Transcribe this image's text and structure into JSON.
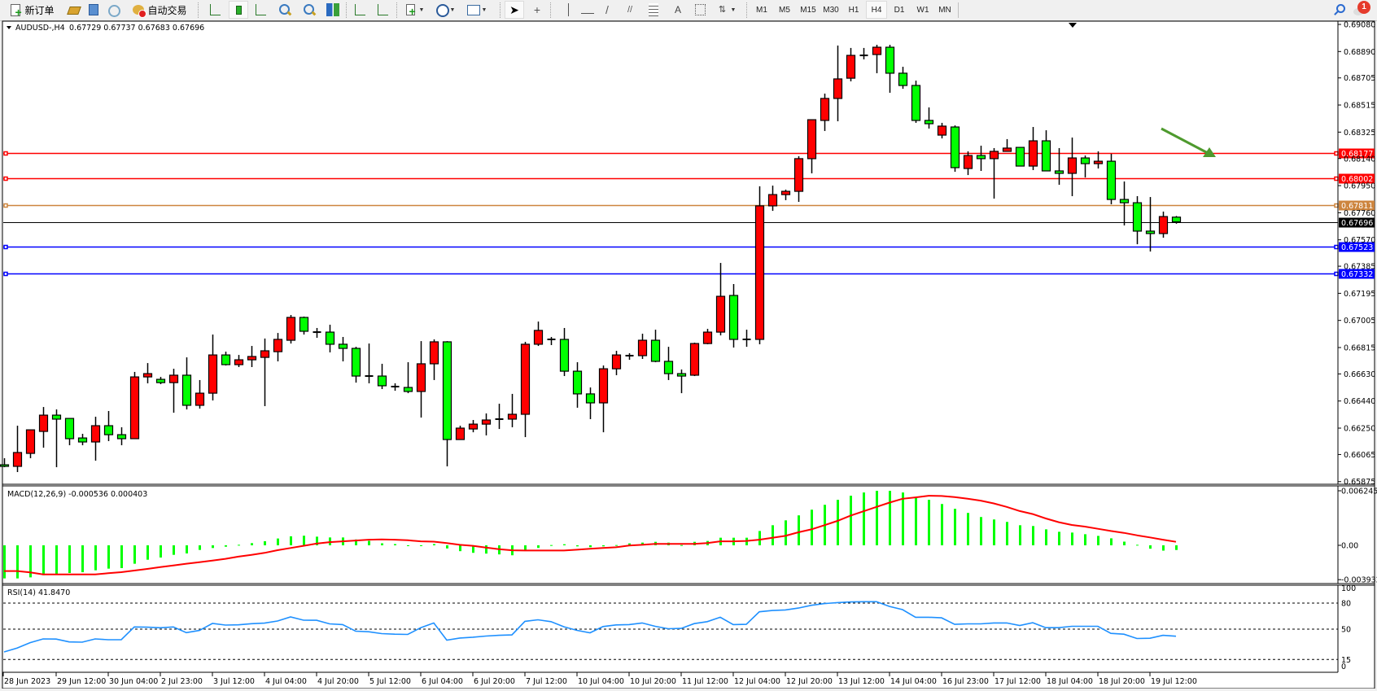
{
  "toolbar": {
    "new_order_label": "新订单",
    "auto_trading_label": "自动交易",
    "icons": [
      "new-order-icon",
      "market-watch-icon",
      "navigator-icon",
      "signals-icon",
      "auto-trading-icon",
      "bar-chart-icon",
      "candlestick-chart-icon",
      "line-chart-icon",
      "zoom-in-icon",
      "zoom-out-icon",
      "tile-windows-icon",
      "auto-scroll-icon",
      "chart-shift-icon",
      "indicators-icon",
      "periods-icon",
      "templates-icon",
      "cursor-icon",
      "crosshair-icon",
      "vertical-line-icon",
      "horizontal-line-icon",
      "trendline-icon",
      "equidistant-channel-icon",
      "fibonacci-icon",
      "text-icon",
      "text-label-icon",
      "arrows-icon",
      "search-icon",
      "notifications-icon"
    ],
    "text_tool": "A",
    "periods": [
      "M1",
      "M5",
      "M15",
      "M30",
      "H1",
      "H4",
      "D1",
      "W1",
      "MN"
    ],
    "active_period": "H4",
    "notification_count": "1"
  },
  "chart": {
    "symbol_label": "AUDUSD-,H4",
    "ohlc_readout": "0.67729 0.67737 0.67683 0.67696",
    "macd_label": "MACD(12,26,9) -0.000536 0.000403",
    "rsi_label": "RSI(14) 41.8470",
    "bull_color": "#ff0000",
    "bear_color": "#00ff00",
    "horizontal_lines": [
      {
        "price": "0.68177",
        "color": "#ff0000"
      },
      {
        "price": "0.68002",
        "color": "#ff0000"
      },
      {
        "price": "0.67811",
        "color": "#cd853f"
      },
      {
        "price": "0.67523",
        "color": "#0000ff"
      },
      {
        "price": "0.67332",
        "color": "#0000ff"
      }
    ],
    "current_price": {
      "price": "0.67696",
      "color": "#000000"
    },
    "annotation_arrow_color": "#4e9a2e"
  },
  "chart_data": [
    {
      "type": "candlestick",
      "series_label": "AUDUSD-,H4",
      "price_ticks": [
        "0.69080",
        "0.68890",
        "0.68705",
        "0.68515",
        "0.68325",
        "0.68140",
        "0.67950",
        "0.67760",
        "0.67570",
        "0.67385",
        "0.67195",
        "0.67005",
        "0.66815",
        "0.66630",
        "0.66440",
        "0.66250",
        "0.66065",
        "0.65875"
      ],
      "time_ticks": [
        "28 Jun 2023",
        "29 Jun 12:00",
        "30 Jun 04:00",
        "2 Jul 23:00",
        "3 Jul 12:00",
        "4 Jul 04:00",
        "4 Jul 20:00",
        "5 Jul 12:00",
        "6 Jul 04:00",
        "6 Jul 20:00",
        "7 Jul 12:00",
        "10 Jul 04:00",
        "10 Jul 20:00",
        "11 Jul 12:00",
        "12 Jul 04:00",
        "12 Jul 20:00",
        "13 Jul 12:00",
        "14 Jul 04:00",
        "16 Jul 23:00",
        "17 Jul 12:00",
        "18 Jul 04:00",
        "18 Jul 20:00",
        "19 Jul 12:00"
      ],
      "ylim": [
        0.65856,
        0.69103
      ],
      "ohlc_order": [
        "open",
        "high",
        "low",
        "close"
      ],
      "ohlc": [
        [
          0.65993,
          0.66039,
          0.65976,
          0.65982
        ],
        [
          0.65982,
          0.66267,
          0.65942,
          0.66079
        ],
        [
          0.66073,
          0.66238,
          0.66039,
          0.66238
        ],
        [
          0.66227,
          0.66398,
          0.66113,
          0.66341
        ],
        [
          0.66341,
          0.66381,
          0.65976,
          0.66313
        ],
        [
          0.66318,
          0.66318,
          0.6613,
          0.66176
        ],
        [
          0.66181,
          0.6621,
          0.6613,
          0.66153
        ],
        [
          0.66153,
          0.6633,
          0.66022,
          0.66267
        ],
        [
          0.66267,
          0.6637,
          0.66159,
          0.66204
        ],
        [
          0.66204,
          0.66256,
          0.6613,
          0.66176
        ],
        [
          0.66176,
          0.66644,
          0.66176,
          0.66609
        ],
        [
          0.66609,
          0.66706,
          0.66564,
          0.66632
        ],
        [
          0.66592,
          0.66609,
          0.66558,
          0.66569
        ],
        [
          0.66569,
          0.66666,
          0.66358,
          0.66621
        ],
        [
          0.66621,
          0.66746,
          0.66381,
          0.6641
        ],
        [
          0.6641,
          0.66587,
          0.66387,
          0.66495
        ],
        [
          0.66495,
          0.66906,
          0.66444,
          0.66763
        ],
        [
          0.66763,
          0.66786,
          0.66689,
          0.66695
        ],
        [
          0.66695,
          0.66763,
          0.66678,
          0.66729
        ],
        [
          0.66729,
          0.66826,
          0.66678,
          0.66752
        ],
        [
          0.66746,
          0.66878,
          0.66404,
          0.66792
        ],
        [
          0.66786,
          0.66917,
          0.66718,
          0.66872
        ],
        [
          0.66866,
          0.67043,
          0.66843,
          0.67026
        ],
        [
          0.67026,
          0.67032,
          0.66906,
          0.66929
        ],
        [
          0.66923,
          0.66952,
          0.66883,
          0.66923
        ],
        [
          0.66923,
          0.66975,
          0.66781,
          0.66838
        ],
        [
          0.66838,
          0.66889,
          0.66718,
          0.66809
        ],
        [
          0.66809,
          0.6682,
          0.66569,
          0.66615
        ],
        [
          0.66615,
          0.66843,
          0.66564,
          0.66615
        ],
        [
          0.66615,
          0.66701,
          0.66524,
          0.66547
        ],
        [
          0.66541,
          0.66564,
          0.66512,
          0.66541
        ],
        [
          0.66535,
          0.66712,
          0.66495,
          0.66507
        ],
        [
          0.66507,
          0.6686,
          0.66324,
          0.66701
        ],
        [
          0.66701,
          0.66872,
          0.66587,
          0.66855
        ],
        [
          0.66855,
          0.6686,
          0.65982,
          0.6617
        ],
        [
          0.6617,
          0.66267,
          0.6617,
          0.6625
        ],
        [
          0.66244,
          0.66307,
          0.66221,
          0.66278
        ],
        [
          0.66278,
          0.66353,
          0.66199,
          0.66307
        ],
        [
          0.66313,
          0.66421,
          0.66244,
          0.66313
        ],
        [
          0.66313,
          0.6649,
          0.66256,
          0.66347
        ],
        [
          0.66347,
          0.66855,
          0.66187,
          0.66838
        ],
        [
          0.66838,
          0.66997,
          0.66826,
          0.66935
        ],
        [
          0.66872,
          0.66889,
          0.66832,
          0.66872
        ],
        [
          0.66872,
          0.66952,
          0.66615,
          0.66649
        ],
        [
          0.66649,
          0.66712,
          0.66393,
          0.6649
        ],
        [
          0.6649,
          0.66535,
          0.66313,
          0.66427
        ],
        [
          0.66427,
          0.66689,
          0.66221,
          0.66666
        ],
        [
          0.66666,
          0.66792,
          0.66621,
          0.66763
        ],
        [
          0.66758,
          0.66775,
          0.66729,
          0.66758
        ],
        [
          0.66758,
          0.66912,
          0.66735,
          0.66866
        ],
        [
          0.66866,
          0.6694,
          0.66712,
          0.66718
        ],
        [
          0.66718,
          0.6682,
          0.66587,
          0.66632
        ],
        [
          0.66632,
          0.66661,
          0.66495,
          0.66615
        ],
        [
          0.66621,
          0.66849,
          0.66615,
          0.66843
        ],
        [
          0.66843,
          0.66946,
          0.66838,
          0.66923
        ],
        [
          0.66923,
          0.67408,
          0.669,
          0.67174
        ],
        [
          0.6718,
          0.6726,
          0.66815,
          0.66872
        ],
        [
          0.66872,
          0.6694,
          0.6682,
          0.66872
        ],
        [
          0.66872,
          0.67945,
          0.66838,
          0.67808
        ],
        [
          0.67808,
          0.6795,
          0.67773,
          0.67887
        ],
        [
          0.67887,
          0.67922,
          0.67848,
          0.6791
        ],
        [
          0.6791,
          0.68156,
          0.67836,
          0.68139
        ],
        [
          0.68139,
          0.68412,
          0.68036,
          0.68412
        ],
        [
          0.68407,
          0.68595,
          0.68333,
          0.68561
        ],
        [
          0.68561,
          0.68932,
          0.68401,
          0.68698
        ],
        [
          0.68703,
          0.68915,
          0.68681,
          0.68863
        ],
        [
          0.68863,
          0.68915,
          0.68835,
          0.68863
        ],
        [
          0.68869,
          0.68937,
          0.68738,
          0.6892
        ],
        [
          0.6892,
          0.68937,
          0.68601,
          0.68738
        ],
        [
          0.68738,
          0.68783,
          0.68629,
          0.68652
        ],
        [
          0.68652,
          0.68686,
          0.6839,
          0.68407
        ],
        [
          0.68407,
          0.68498,
          0.6835,
          0.68384
        ],
        [
          0.68304,
          0.6839,
          0.68281,
          0.68367
        ],
        [
          0.68361,
          0.68372,
          0.68047,
          0.68076
        ],
        [
          0.6807,
          0.6819,
          0.68024,
          0.68161
        ],
        [
          0.68161,
          0.6823,
          0.68053,
          0.68139
        ],
        [
          0.68139,
          0.68213,
          0.67859,
          0.6819
        ],
        [
          0.6819,
          0.68276,
          0.6819,
          0.68213
        ],
        [
          0.68218,
          0.68218,
          0.68087,
          0.68087
        ],
        [
          0.68087,
          0.68361,
          0.68059,
          0.68264
        ],
        [
          0.68264,
          0.68338,
          0.68053,
          0.68053
        ],
        [
          0.68053,
          0.68213,
          0.67956,
          0.68036
        ],
        [
          0.68036,
          0.68287,
          0.67876,
          0.68144
        ],
        [
          0.68144,
          0.68161,
          0.68007,
          0.68104
        ],
        [
          0.68104,
          0.6819,
          0.6807,
          0.68121
        ],
        [
          0.68121,
          0.68173,
          0.67819,
          0.67853
        ],
        [
          0.67853,
          0.67979,
          0.67671,
          0.6783
        ],
        [
          0.6783,
          0.67876,
          0.67539,
          0.67631
        ],
        [
          0.67631,
          0.6787,
          0.67488,
          0.67614
        ],
        [
          0.67614,
          0.67768,
          0.67585,
          0.67733
        ],
        [
          0.67729,
          0.67737,
          0.67683,
          0.67696
        ]
      ]
    },
    {
      "type": "bar",
      "indicator": "MACD(12,26,9)",
      "y_ticks": [
        "0.006245",
        "0.00",
        "-0.003932"
      ],
      "ylim": [
        -0.003932,
        0.006245
      ],
      "histogram": [
        -0.00379,
        -0.00379,
        -0.00367,
        -0.00342,
        -0.00326,
        -0.00317,
        -0.00308,
        -0.00286,
        -0.00267,
        -0.00261,
        -0.00211,
        -0.00165,
        -0.0014,
        -0.00109,
        -0.00093,
        -0.00053,
        -0.00031,
        -0.00016,
        6e-05,
        0.00025,
        0.00047,
        0.00078,
        0.00103,
        0.0011,
        0.00099,
        0.0009,
        0.0009,
        0.00067,
        0.00051,
        0.00023,
        0.00014,
        -3e-05,
        -3e-05,
        0.00014,
        -0.00036,
        -0.00067,
        -0.00086,
        -0.00095,
        -0.00104,
        -0.00114,
        -0.00051,
        -0.0003,
        3e-05,
        0.00012,
        -0.00012,
        -0.00021,
        -0.00012,
        3e-05,
        0.00022,
        0.00031,
        0.0004,
        0.00031,
        3e-05,
        0.0004,
        0.0005,
        0.00087,
        0.00087,
        0.00087,
        0.00164,
        0.0023,
        0.00286,
        0.00343,
        0.00408,
        0.00464,
        0.00521,
        0.00568,
        0.00605,
        0.00624,
        0.00624,
        0.00605,
        0.00549,
        0.00521,
        0.00473,
        0.00418,
        0.00371,
        0.00324,
        0.00296,
        0.00268,
        0.0023,
        0.00221,
        0.00183,
        0.00155,
        0.00146,
        0.00127,
        0.00108,
        0.0008,
        0.00042,
        6e-05,
        -0.00039,
        -0.00061,
        -0.000536
      ],
      "signal": [
        -0.00295,
        -0.00295,
        -0.0031,
        -0.00333,
        -0.00333,
        -0.00333,
        -0.00333,
        -0.00333,
        -0.0032,
        -0.00308,
        -0.00289,
        -0.0027,
        -0.00249,
        -0.0023,
        -0.00211,
        -0.00193,
        -0.00174,
        -0.00155,
        -0.0013,
        -0.00109,
        -0.00087,
        -0.00056,
        -0.00031,
        -6e-05,
        0.0002,
        0.00036,
        0.00046,
        0.00055,
        0.00064,
        0.00067,
        0.00064,
        0.00058,
        0.00046,
        0.00042,
        0.00026,
        6e-05,
        -6e-05,
        -0.00025,
        -0.00044,
        -0.00057,
        -0.0006,
        -0.0006,
        -0.0006,
        -0.0006,
        -0.0005,
        -0.0004,
        -0.00031,
        -0.00022,
        -3e-05,
        6e-05,
        0.00016,
        0.00016,
        0.00016,
        0.00016,
        0.00026,
        0.00046,
        0.00046,
        0.0005,
        0.00064,
        0.00086,
        0.00108,
        0.00149,
        0.00183,
        0.0023,
        0.0028,
        0.00339,
        0.0039,
        0.0044,
        0.00489,
        0.00533,
        0.00549,
        0.00568,
        0.00565,
        0.00552,
        0.00533,
        0.00512,
        0.0048,
        0.0044,
        0.00392,
        0.00358,
        0.00308,
        0.00265,
        0.00233,
        0.00214,
        0.00189,
        0.00164,
        0.00143,
        0.00115,
        0.0009,
        0.00064,
        0.000403
      ],
      "histogram_color": "#00ff00",
      "signal_color": "#ff0000"
    },
    {
      "type": "line",
      "indicator": "RSI(14)",
      "y_ticks": [
        "100",
        "80",
        "50",
        "15",
        "0"
      ],
      "levels": [
        80,
        50,
        15
      ],
      "ylim": [
        0,
        100
      ],
      "values": [
        23.7,
        28.1,
        34.4,
        38.7,
        38.5,
        35.3,
        35,
        38.7,
        37.8,
        37.8,
        52.5,
        52.2,
        51.6,
        52.5,
        46,
        48.5,
        56.6,
        54.7,
        55,
        56.3,
        56.9,
        59.4,
        64.1,
        60.3,
        60.2,
        56.1,
        55.2,
        47.6,
        47,
        44.8,
        44.2,
        43.9,
        51.7,
        57.1,
        37.3,
        39.8,
        40.7,
        42,
        42.9,
        43.3,
        59,
        60.8,
        58.6,
        52.7,
        48.6,
        45.8,
        53,
        54.9,
        55.2,
        57.1,
        53.3,
        50.5,
        50.8,
        56.4,
        58.6,
        63.7,
        55.2,
        55.5,
        70,
        71.5,
        72.1,
        74.3,
        77.5,
        79.4,
        80.6,
        81.3,
        81.6,
        81.6,
        76.2,
        72.5,
        63.7,
        63.7,
        63,
        55.5,
        56.1,
        56.1,
        57.1,
        57.1,
        54.2,
        57.4,
        51.7,
        51.7,
        53.3,
        53.3,
        53.3,
        45.1,
        44.2,
        39.2,
        39.5,
        42.9,
        41.847
      ],
      "line_color": "#1e90ff"
    }
  ]
}
